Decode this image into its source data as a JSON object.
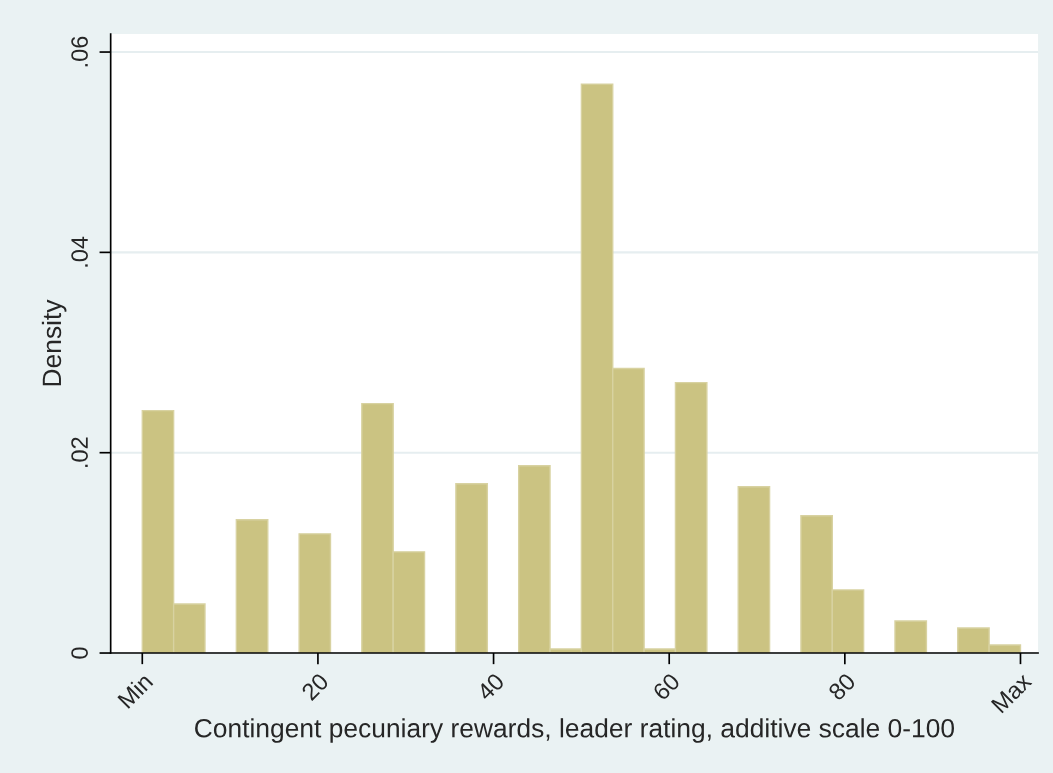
{
  "chart_data": {
    "type": "histogram",
    "xlabel": "Contingent pecuniary rewards, leader rating, additive scale 0-100",
    "ylabel": "Density",
    "bins": [
      0,
      3.57,
      7.14,
      10.71,
      14.29,
      17.86,
      21.43,
      25,
      28.57,
      32.14,
      35.71,
      39.29,
      42.86,
      46.43,
      50,
      53.57,
      57.14,
      60.71,
      64.29,
      67.86,
      71.43,
      75,
      78.57,
      82.14,
      85.71,
      89.29,
      92.86,
      96.43,
      100
    ],
    "values": [
      0.0242,
      0.0049,
      0,
      0.0133,
      0,
      0.0119,
      0,
      0.0249,
      0.0101,
      0,
      0.0169,
      0,
      0.0187,
      0.0004,
      0.0568,
      0.0284,
      0.0004,
      0.027,
      0,
      0.0166,
      0,
      0.0137,
      0.0063,
      0,
      0.0032,
      0,
      0.0025,
      0.0008
    ],
    "color": "#cbc382",
    "xlim": [
      -3.6,
      102
    ],
    "xticks": [
      {
        "value": 0,
        "label": "Min"
      },
      20,
      40,
      60,
      80,
      {
        "value": 100,
        "label": "Max"
      }
    ],
    "ylim": [
      0,
      0.0618
    ],
    "yticks": [
      0,
      {
        "value": 0.02,
        "label": ".02"
      },
      {
        "value": 0.04,
        "label": ".04"
      },
      {
        "value": 0.06,
        "label": ".06"
      }
    ],
    "grid": "y"
  }
}
